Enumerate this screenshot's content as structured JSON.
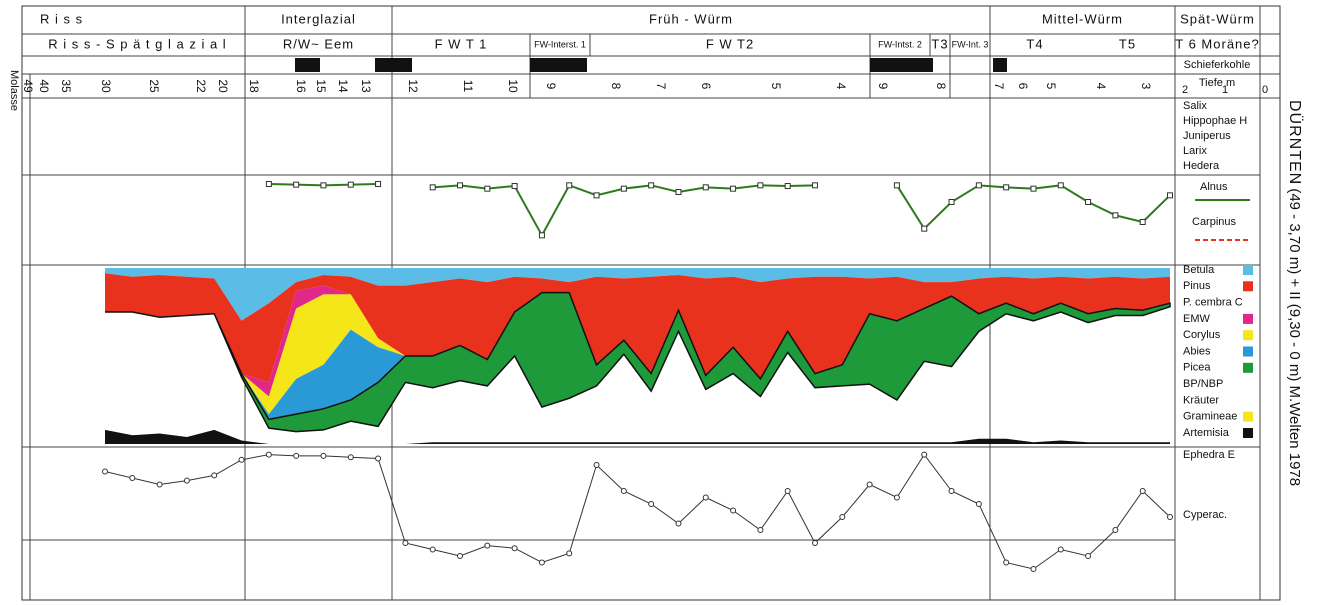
{
  "header": {
    "zones": [
      "R i s s",
      "Interglazial",
      "Früh - Würm",
      "Mittel-Würm",
      "Spät-Würm"
    ],
    "subzones": [
      "R i s s - S p ä t g l a z i a l",
      "R/W~ Eem",
      "F W  T 1",
      "FW-Interst. 1",
      "F W  T2",
      "FW-Intst. 2",
      "T3",
      "FW-Int. 3",
      "T4",
      "T5",
      "T 6 Moräne?"
    ],
    "site": "DÜRNTEN",
    "subtitle": "I (49 - 3,70 m) + II (9,30 - 0 m) M.Welten 1978",
    "left_label": "Molasse"
  },
  "rows": {
    "coal": "Schieferkohle",
    "depth": "Tiefe  m",
    "depth_scale": [
      "2",
      "1",
      "0"
    ]
  },
  "depth_labels": [
    "49",
    "40",
    "35",
    "30",
    "25",
    "22",
    "20",
    "18",
    "16",
    "15",
    "14",
    "13",
    "12",
    "11",
    "10",
    "9",
    "8",
    "7",
    "6",
    "5",
    "4",
    "9",
    "8",
    "7",
    "6",
    "5",
    "4",
    "3"
  ],
  "legend": {
    "shrubs": [
      "Salix",
      "Hippophae H",
      "Juniperus",
      "Larix",
      "Hedera"
    ],
    "alnus": [
      "Alnus",
      "Carpinus"
    ],
    "main": [
      "Betula",
      "Pinus",
      "P. cembra C",
      "EMW",
      "Corylus",
      "Abies",
      "Picea",
      "BP/NBP",
      "Kräuter",
      "Gramineae",
      "Artemisia"
    ],
    "bottom": [
      "Ephedra E",
      "Cyperac."
    ]
  },
  "pollen": {
    "xlim": [
      0,
      39
    ],
    "ylim": [
      0,
      100
    ],
    "series": [
      {
        "name": "Betula",
        "color": "#5bbde6",
        "values": [
          3,
          5,
          4,
          5,
          6,
          30,
          20,
          8,
          4,
          5,
          10,
          10,
          8,
          6,
          8,
          5,
          6,
          8,
          5,
          6,
          5,
          4,
          6,
          5,
          8,
          6,
          5,
          5,
          6,
          5,
          8,
          8,
          6,
          5,
          6,
          5,
          6,
          5,
          6,
          5
        ]
      },
      {
        "name": "Pinus",
        "color": "#e8321e",
        "values": [
          22,
          20,
          24,
          22,
          20,
          30,
          45,
          5,
          6,
          10,
          30,
          40,
          42,
          38,
          44,
          20,
          8,
          6,
          50,
          35,
          55,
          20,
          55,
          40,
          55,
          30,
          55,
          50,
          20,
          25,
          15,
          8,
          20,
          15,
          20,
          15,
          20,
          18,
          18,
          15
        ]
      },
      {
        "name": "EMW",
        "color": "#e0288a",
        "values": [
          0,
          0,
          0,
          0,
          0,
          0,
          8,
          10,
          5,
          0,
          0,
          0,
          0,
          0,
          0,
          0,
          0,
          0,
          0,
          0,
          0,
          0,
          0,
          0,
          0,
          0,
          0,
          0,
          0,
          0,
          0,
          0,
          0,
          0,
          0,
          0,
          0,
          0,
          0,
          0
        ]
      },
      {
        "name": "Corylus",
        "color": "#f5e619",
        "values": [
          0,
          0,
          0,
          0,
          0,
          0,
          10,
          40,
          40,
          20,
          5,
          0,
          0,
          0,
          0,
          0,
          0,
          0,
          0,
          0,
          0,
          0,
          0,
          0,
          0,
          0,
          0,
          0,
          0,
          0,
          0,
          0,
          0,
          0,
          0,
          0,
          0,
          0,
          0,
          0
        ]
      },
      {
        "name": "Abies",
        "color": "#2a9ad6",
        "values": [
          0,
          0,
          0,
          0,
          0,
          0,
          3,
          20,
          25,
          40,
          20,
          0,
          0,
          0,
          0,
          0,
          0,
          0,
          0,
          0,
          0,
          0,
          0,
          0,
          0,
          0,
          0,
          0,
          0,
          0,
          0,
          0,
          0,
          0,
          0,
          0,
          0,
          0,
          0,
          0
        ]
      },
      {
        "name": "Picea",
        "color": "#1f9a3a",
        "values": [
          0,
          0,
          0,
          0,
          0,
          2,
          5,
          10,
          12,
          12,
          25,
          15,
          18,
          20,
          15,
          25,
          65,
          60,
          12,
          8,
          10,
          12,
          8,
          15,
          10,
          12,
          8,
          12,
          40,
          45,
          30,
          40,
          10,
          6,
          4,
          5,
          5,
          4,
          3,
          2
        ]
      }
    ],
    "artemisia": {
      "name": "Artemisia",
      "color": "#111",
      "values": [
        8,
        5,
        6,
        4,
        8,
        2,
        0,
        0,
        0,
        0,
        0,
        0,
        1,
        1,
        1,
        1,
        1,
        1,
        1,
        1,
        1,
        1,
        1,
        1,
        1,
        1,
        1,
        1,
        1,
        1,
        1,
        1,
        3,
        3,
        1,
        2,
        1,
        1,
        1,
        1
      ]
    },
    "alnus": {
      "name": "Alnus",
      "color": "#2d7a1e",
      "ylim": [
        0,
        12
      ],
      "values": [
        null,
        null,
        null,
        null,
        null,
        null,
        0.3,
        0.4,
        0.5,
        0.4,
        0.3,
        null,
        0.8,
        0.5,
        1,
        0.6,
        8,
        0.5,
        2,
        1,
        0.5,
        1.5,
        0.8,
        1,
        0.5,
        0.6,
        0.5,
        null,
        null,
        0.5,
        7,
        3,
        0.5,
        0.8,
        1,
        0.5,
        3,
        5,
        6,
        2
      ]
    },
    "cyperac": {
      "name": "Cyperac.",
      "color": "#333",
      "ylim": [
        0,
        100
      ],
      "values": [
        15,
        20,
        25,
        22,
        18,
        6,
        2,
        3,
        3,
        4,
        5,
        70,
        75,
        80,
        72,
        74,
        85,
        78,
        10,
        30,
        40,
        55,
        35,
        45,
        60,
        30,
        70,
        50,
        25,
        35,
        2,
        30,
        40,
        85,
        90,
        75,
        80,
        60,
        30,
        50
      ]
    }
  }
}
